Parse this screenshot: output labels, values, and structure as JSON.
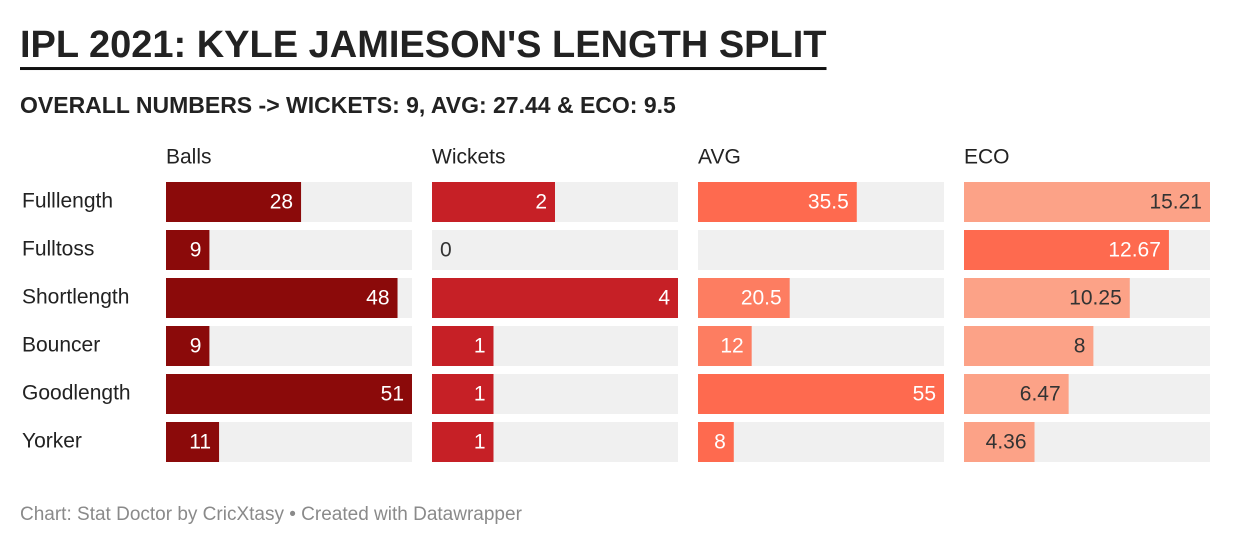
{
  "chart_data": {
    "type": "bar",
    "title": "IPL 2021: KYLE JAMIESON'S LENGTH SPLIT",
    "subtitle": "OVERALL NUMBERS -> WICKETS: 9, AVG: 27.44 & ECO: 9.5",
    "categories": [
      "Fulllength",
      "Fulltoss",
      "Shortlength",
      "Bouncer",
      "Goodlength",
      "Yorker"
    ],
    "series": [
      {
        "name": "Balls",
        "values": [
          28,
          9,
          48,
          9,
          51,
          11
        ],
        "xlim": [
          0,
          51
        ],
        "colors": [
          "#8b0a0a",
          "#8b0a0a",
          "#8b0a0a",
          "#8b0a0a",
          "#8b0a0a",
          "#8b0a0a"
        ]
      },
      {
        "name": "Wickets",
        "values": [
          2,
          0,
          4,
          1,
          1,
          1
        ],
        "xlim": [
          0,
          4
        ],
        "colors": [
          "#c62026",
          "#c62026",
          "#c62026",
          "#c62026",
          "#c62026",
          "#c62026"
        ]
      },
      {
        "name": "AVG",
        "values": [
          35.5,
          null,
          20.5,
          12,
          55,
          8
        ],
        "xlim": [
          0,
          55
        ],
        "colors": [
          "#fe6a4f",
          "#fe6a4f",
          "#fd7d61",
          "#fd7d61",
          "#fe6a4f",
          "#fe6a4f"
        ]
      },
      {
        "name": "ECO",
        "values": [
          15.21,
          12.67,
          10.25,
          8,
          6.47,
          4.36
        ],
        "xlim": [
          0,
          15.21
        ],
        "colors": [
          "#fca287",
          "#fe6a4f",
          "#fca287",
          "#fca287",
          "#fca287",
          "#fca287"
        ]
      }
    ],
    "footer": "Chart: Stat Doctor by CricXtasy • Created with Datawrapper"
  }
}
